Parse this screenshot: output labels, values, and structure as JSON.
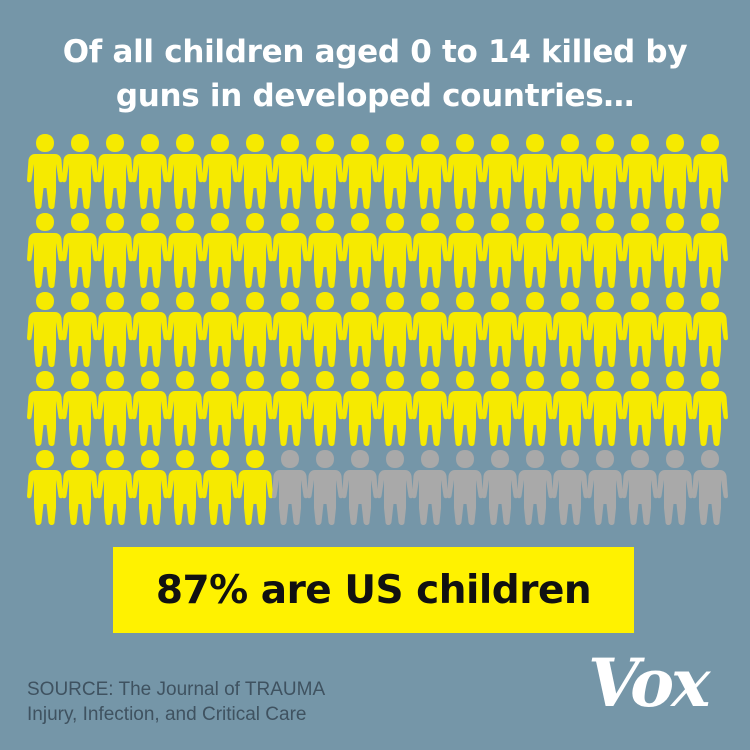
{
  "title": "Of all children aged 0 to 14 killed by guns in developed countries…",
  "chart_data": {
    "type": "pictogram",
    "total": 100,
    "rows": 5,
    "per_row": 20,
    "series": [
      {
        "name": "US children",
        "value": 87,
        "color": "#f6ea00"
      },
      {
        "value": 13,
        "color": "#a9a9a9"
      }
    ]
  },
  "callout": "87% are US children",
  "source": {
    "line1": "SOURCE: The Journal of TRAUMA",
    "line2": "Injury, Infection, and Critical Care"
  },
  "logo": "Vox",
  "colors": {
    "background": "#7596a8",
    "highlight": "#f6ea00",
    "other": "#a9a9a9"
  }
}
